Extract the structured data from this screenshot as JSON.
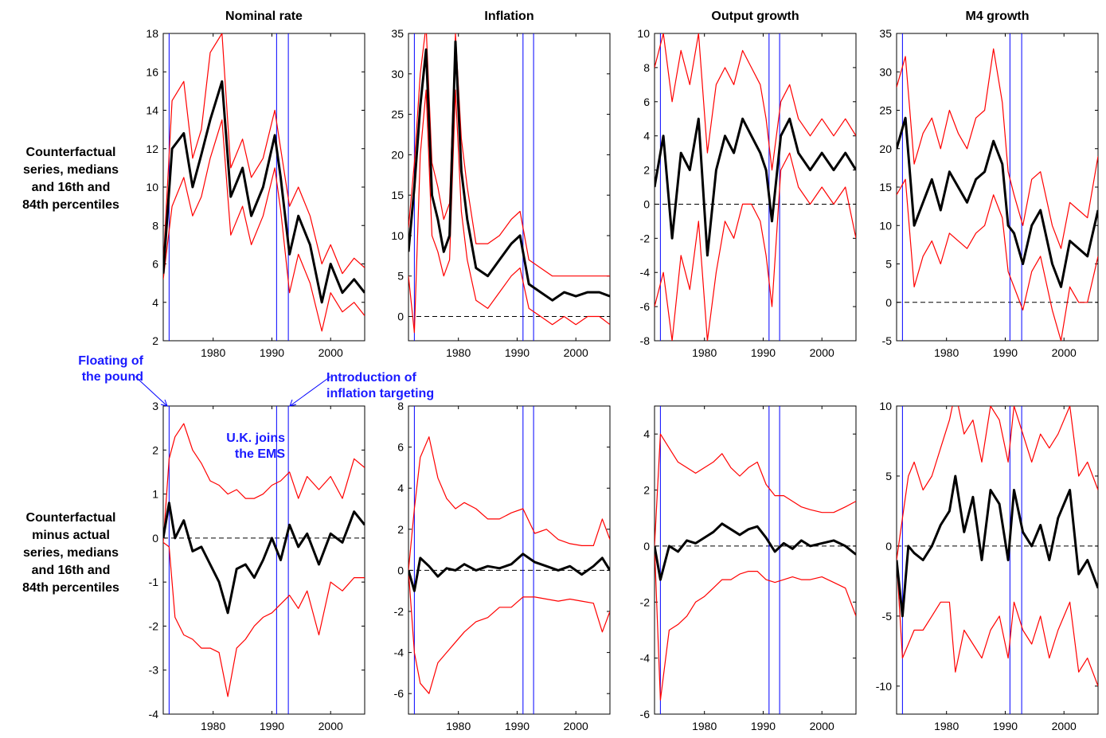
{
  "row_labels": {
    "top": "Counterfactual\nseries, medians\nand 16th and\n84th percentiles",
    "bottom": "Counterfactual\nminus actual\nseries, medians\nand 16th and\n84th percentiles"
  },
  "annotations": {
    "floating": "Floating of\nthe pound",
    "inflation_targeting": "Introduction of\ninflation targeting",
    "ems": "U.K. joins\nthe EMS"
  },
  "colors": {
    "median": "#000000",
    "percentile": "#ff0000",
    "event_line": "#0000ff",
    "dashed_zero": "#000000"
  },
  "chart_data": [
    {
      "type": "line",
      "title": "Nominal rate",
      "row": "top",
      "xlim": [
        1971.5,
        2005.8
      ],
      "ylim": [
        2,
        18
      ],
      "x_ticks": [
        1980,
        1990,
        2000
      ],
      "y_ticks": [
        2,
        4,
        6,
        8,
        10,
        12,
        14,
        16,
        18
      ],
      "zero_line": false,
      "event_years": [
        1972.5,
        1990.8,
        1992.8
      ],
      "x": [
        1971.5,
        1973,
        1975,
        1976.5,
        1978,
        1979.5,
        1981.5,
        1983,
        1985,
        1986.5,
        1988.5,
        1990.5,
        1991.5,
        1993,
        1994.5,
        1996.5,
        1998.5,
        2000,
        2002,
        2004,
        2005.8
      ],
      "series": [
        {
          "name": "Median",
          "values": [
            5.5,
            12,
            12.8,
            10,
            11.7,
            13.5,
            15.5,
            9.5,
            11,
            8.5,
            10,
            12.7,
            10.5,
            6.5,
            8.5,
            7,
            4,
            6,
            4.5,
            5.2,
            4.5
          ]
        },
        {
          "name": "84th percentile",
          "values": [
            6,
            14.5,
            15.5,
            11.5,
            13,
            17,
            18,
            11,
            12.5,
            10.5,
            11.5,
            14,
            12,
            9,
            10,
            8.5,
            6,
            7,
            5.5,
            6.3,
            5.8
          ]
        },
        {
          "name": "16th percentile",
          "values": [
            5.2,
            9,
            10.5,
            8.5,
            9.5,
            11.5,
            13.5,
            7.5,
            9,
            7,
            8.5,
            11,
            8.8,
            4.5,
            6.5,
            5,
            2.5,
            4.5,
            3.5,
            4,
            3.3
          ]
        }
      ]
    },
    {
      "type": "line",
      "title": "Inflation",
      "row": "top",
      "xlim": [
        1971.5,
        2005.8
      ],
      "ylim": [
        -3,
        35
      ],
      "x_ticks": [
        1980,
        1990,
        2000
      ],
      "y_ticks": [
        0,
        5,
        10,
        15,
        20,
        25,
        30,
        35
      ],
      "zero_line": true,
      "event_years": [
        1972.5,
        1991,
        1992.8
      ],
      "x": [
        1971.5,
        1972.5,
        1973.5,
        1974.5,
        1975.5,
        1976.5,
        1977.5,
        1978.5,
        1979.5,
        1980.5,
        1981.5,
        1983,
        1985,
        1987,
        1989,
        1990.5,
        1992,
        1994,
        1996,
        1998,
        2000,
        2002,
        2004,
        2005.8
      ],
      "series": [
        {
          "name": "Median",
          "values": [
            8,
            16,
            26,
            33,
            15,
            12,
            8,
            10,
            34,
            18,
            12,
            6,
            5,
            7,
            9,
            10,
            4,
            3,
            2,
            3,
            2.5,
            3,
            3,
            2.5
          ]
        },
        {
          "name": "84th percentile",
          "values": [
            11,
            19,
            30,
            36,
            19,
            16,
            12,
            14,
            35,
            22,
            16,
            9,
            9,
            10,
            12,
            13,
            7,
            6,
            5,
            5,
            5,
            5,
            5,
            5
          ]
        },
        {
          "name": "16th percentile",
          "values": [
            5,
            -2,
            20,
            28,
            10,
            8,
            5,
            7,
            28,
            13,
            7,
            2,
            1,
            3,
            5,
            6,
            1,
            0,
            -1,
            0,
            -1,
            0,
            0,
            -1
          ]
        }
      ]
    },
    {
      "type": "line",
      "title": "Output growth",
      "row": "top",
      "xlim": [
        1971.5,
        2005.8
      ],
      "ylim": [
        -8,
        10
      ],
      "x_ticks": [
        1980,
        1990,
        2000
      ],
      "y_ticks": [
        -8,
        -6,
        -4,
        -2,
        0,
        2,
        4,
        6,
        8,
        10
      ],
      "zero_line": true,
      "event_years": [
        1972.5,
        1991,
        1992.8
      ],
      "x": [
        1971.5,
        1973,
        1974.5,
        1976,
        1977.5,
        1979,
        1980.5,
        1982,
        1983.5,
        1985,
        1986.5,
        1988,
        1989.5,
        1990.5,
        1991.5,
        1993,
        1994.5,
        1996,
        1998,
        2000,
        2002,
        2004,
        2005.8
      ],
      "series": [
        {
          "name": "Median",
          "values": [
            1,
            4,
            -2,
            3,
            2,
            5,
            -3,
            2,
            4,
            3,
            5,
            4,
            3,
            2,
            -1,
            4,
            5,
            3,
            2,
            3,
            2,
            3,
            2
          ]
        },
        {
          "name": "84th percentile",
          "values": [
            8,
            10,
            6,
            9,
            7,
            10,
            3,
            7,
            8,
            7,
            9,
            8,
            7,
            5,
            2,
            6,
            7,
            5,
            4,
            5,
            4,
            5,
            4
          ]
        },
        {
          "name": "16th percentile",
          "values": [
            -6,
            -4,
            -8,
            -3,
            -5,
            -1,
            -8,
            -4,
            -1,
            -2,
            0,
            0,
            -1,
            -3,
            -6,
            2,
            3,
            1,
            0,
            1,
            0,
            1,
            -2
          ]
        }
      ]
    },
    {
      "type": "line",
      "title": "M4 growth",
      "row": "top",
      "xlim": [
        1971.5,
        2005.8
      ],
      "ylim": [
        -5,
        35
      ],
      "x_ticks": [
        1980,
        1990,
        2000
      ],
      "y_ticks": [
        -5,
        0,
        5,
        10,
        15,
        20,
        25,
        30,
        35
      ],
      "zero_line": true,
      "event_years": [
        1972.5,
        1990.8,
        1992.8
      ],
      "x": [
        1971.5,
        1973,
        1974.5,
        1976,
        1977.5,
        1979,
        1980.5,
        1982,
        1983.5,
        1985,
        1986.5,
        1988,
        1989.5,
        1990.5,
        1991.5,
        1993,
        1994.5,
        1996,
        1998,
        1999.5,
        2001,
        2002.5,
        2004,
        2005.8
      ],
      "series": [
        {
          "name": "Median",
          "values": [
            20,
            24,
            10,
            13,
            16,
            12,
            17,
            15,
            13,
            16,
            17,
            21,
            18,
            10,
            9,
            5,
            10,
            12,
            5,
            2,
            8,
            7,
            6,
            12
          ]
        },
        {
          "name": "84th percentile",
          "values": [
            28,
            32,
            18,
            22,
            24,
            20,
            25,
            22,
            20,
            24,
            25,
            33,
            26,
            17,
            14,
            10,
            16,
            17,
            10,
            7,
            13,
            12,
            11,
            19
          ]
        },
        {
          "name": "16th percentile",
          "values": [
            14,
            16,
            2,
            6,
            8,
            5,
            9,
            8,
            7,
            9,
            10,
            14,
            11,
            4,
            2,
            -1,
            4,
            6,
            -1,
            -5,
            2,
            0,
            0,
            6
          ]
        }
      ]
    },
    {
      "type": "line",
      "title": "",
      "row": "bottom",
      "xlim": [
        1971.5,
        2005.8
      ],
      "ylim": [
        -4,
        3
      ],
      "x_ticks": [
        1980,
        1990,
        2000
      ],
      "y_ticks": [
        -4,
        -3,
        -2,
        -1,
        0,
        1,
        2,
        3
      ],
      "zero_line": true,
      "event_years": [
        1972.5,
        1990.8,
        1992.8
      ],
      "x": [
        1971.5,
        1972.5,
        1973.5,
        1975,
        1976.5,
        1978,
        1979.5,
        1981,
        1982.5,
        1984,
        1985.5,
        1987,
        1988.5,
        1990,
        1991.5,
        1993,
        1994.5,
        1996,
        1998,
        2000,
        2002,
        2004,
        2005.8
      ],
      "series": [
        {
          "name": "Median",
          "values": [
            0,
            0.8,
            0,
            0.4,
            -0.3,
            -0.2,
            -0.6,
            -1,
            -1.7,
            -0.7,
            -0.6,
            -0.9,
            -0.5,
            0,
            -0.5,
            0.3,
            -0.2,
            0.1,
            -0.6,
            0.1,
            -0.1,
            0.6,
            0.3
          ]
        },
        {
          "name": "84th percentile",
          "values": [
            -0.1,
            1.8,
            2.3,
            2.6,
            2,
            1.7,
            1.3,
            1.2,
            1,
            1.1,
            0.9,
            0.9,
            1,
            1.2,
            1.3,
            1.5,
            0.9,
            1.4,
            1.1,
            1.4,
            0.9,
            1.8,
            1.6
          ]
        },
        {
          "name": "16th percentile",
          "values": [
            -0.1,
            -0.2,
            -1.8,
            -2.2,
            -2.3,
            -2.5,
            -2.5,
            -2.6,
            -3.6,
            -2.5,
            -2.3,
            -2,
            -1.8,
            -1.7,
            -1.5,
            -1.3,
            -1.6,
            -1.2,
            -2.2,
            -1,
            -1.2,
            -0.9,
            -0.9
          ]
        }
      ]
    },
    {
      "type": "line",
      "title": "",
      "row": "bottom",
      "xlim": [
        1971.5,
        2005.8
      ],
      "ylim": [
        -7,
        8
      ],
      "x_ticks": [
        1980,
        1990,
        2000
      ],
      "y_ticks": [
        -6,
        -4,
        -2,
        0,
        2,
        4,
        6,
        8
      ],
      "zero_line": true,
      "event_years": [
        1972.5,
        1991,
        1992.8
      ],
      "x": [
        1971.5,
        1972.5,
        1973.5,
        1975,
        1976.5,
        1978,
        1979.5,
        1981,
        1983,
        1985,
        1987,
        1989,
        1991,
        1993,
        1995,
        1997,
        1999,
        2001,
        2003,
        2004.5,
        2005.8
      ],
      "series": [
        {
          "name": "Median",
          "values": [
            0,
            -1,
            0.6,
            0.2,
            -0.3,
            0.1,
            0,
            0.3,
            0,
            0.2,
            0.1,
            0.3,
            0.8,
            0.4,
            0.2,
            0,
            0.2,
            -0.2,
            0.2,
            0.6,
            0
          ]
        },
        {
          "name": "84th percentile",
          "values": [
            0,
            3,
            5.5,
            6.5,
            4.5,
            3.5,
            3,
            3.3,
            3,
            2.5,
            2.5,
            2.8,
            3,
            1.8,
            2,
            1.5,
            1.3,
            1.2,
            1.2,
            2.5,
            1.5
          ]
        },
        {
          "name": "16th percentile",
          "values": [
            0,
            -4,
            -5.5,
            -6,
            -4.5,
            -4,
            -3.5,
            -3,
            -2.5,
            -2.3,
            -1.8,
            -1.8,
            -1.3,
            -1.3,
            -1.4,
            -1.5,
            -1.4,
            -1.5,
            -1.6,
            -3,
            -2
          ]
        }
      ]
    },
    {
      "type": "line",
      "title": "",
      "row": "bottom",
      "xlim": [
        1971.5,
        2005.8
      ],
      "ylim": [
        -6,
        5
      ],
      "x_ticks": [
        1980,
        1990,
        2000
      ],
      "y_ticks": [
        -6,
        -4,
        -2,
        0,
        2,
        4
      ],
      "zero_line": true,
      "event_years": [
        1972.5,
        1991,
        1992.8
      ],
      "x": [
        1971.5,
        1972.5,
        1974,
        1975.5,
        1977,
        1978.5,
        1980,
        1981.5,
        1983,
        1984.5,
        1986,
        1987.5,
        1989,
        1990.5,
        1992,
        1993.5,
        1995,
        1996.5,
        1998,
        2000,
        2002,
        2004,
        2005.8
      ],
      "series": [
        {
          "name": "Median",
          "values": [
            0,
            -1.2,
            0,
            -0.2,
            0.2,
            0.1,
            0.3,
            0.5,
            0.8,
            0.6,
            0.4,
            0.6,
            0.7,
            0.3,
            -0.2,
            0.1,
            -0.1,
            0.2,
            0,
            0.1,
            0.2,
            0,
            -0.3
          ]
        },
        {
          "name": "84th percentile",
          "values": [
            0,
            4,
            3.5,
            3,
            2.8,
            2.6,
            2.8,
            3,
            3.3,
            2.8,
            2.5,
            2.8,
            3,
            2.2,
            1.8,
            1.8,
            1.6,
            1.4,
            1.3,
            1.2,
            1.2,
            1.4,
            1.6
          ]
        },
        {
          "name": "16th percentile",
          "values": [
            0,
            -5.5,
            -3,
            -2.8,
            -2.5,
            -2,
            -1.8,
            -1.5,
            -1.2,
            -1.2,
            -1,
            -0.9,
            -0.9,
            -1.2,
            -1.3,
            -1.2,
            -1.1,
            -1.2,
            -1.2,
            -1.1,
            -1.3,
            -1.5,
            -2.5
          ]
        }
      ]
    },
    {
      "type": "line",
      "title": "",
      "row": "bottom",
      "xlim": [
        1971.5,
        2005.8
      ],
      "ylim": [
        -12,
        10
      ],
      "x_ticks": [
        1980,
        1990,
        2000
      ],
      "y_ticks": [
        -10,
        -5,
        0,
        5,
        10
      ],
      "zero_line": true,
      "event_years": [
        1972.5,
        1990.8,
        1992.8
      ],
      "x": [
        1971.5,
        1972.5,
        1973.5,
        1974.5,
        1976,
        1977.5,
        1979,
        1980.5,
        1981.5,
        1983,
        1984.5,
        1986,
        1987.5,
        1989,
        1990.5,
        1991.5,
        1993,
        1994.5,
        1996,
        1997.5,
        1999,
        2001,
        2002.5,
        2004,
        2005.8
      ],
      "series": [
        {
          "name": "Median",
          "values": [
            -1,
            -5,
            0,
            -0.5,
            -1,
            0,
            1.5,
            2.5,
            5,
            1,
            3.5,
            -1,
            4,
            3,
            -1,
            4,
            1,
            0,
            1.5,
            -1,
            2,
            4,
            -2,
            -1,
            -3
          ]
        },
        {
          "name": "84th percentile",
          "values": [
            -1,
            2,
            5,
            6,
            4,
            5,
            7,
            9,
            11,
            8,
            9,
            6,
            10,
            9,
            6,
            10,
            8,
            6,
            8,
            7,
            8,
            10,
            5,
            6,
            4
          ]
        },
        {
          "name": "16th percentile",
          "values": [
            -1,
            -8,
            -7,
            -6,
            -6,
            -5,
            -4,
            -4,
            -9,
            -6,
            -7,
            -8,
            -6,
            -5,
            -8,
            -4,
            -6,
            -7,
            -5,
            -8,
            -6,
            -4,
            -9,
            -8,
            -10
          ]
        }
      ]
    }
  ]
}
